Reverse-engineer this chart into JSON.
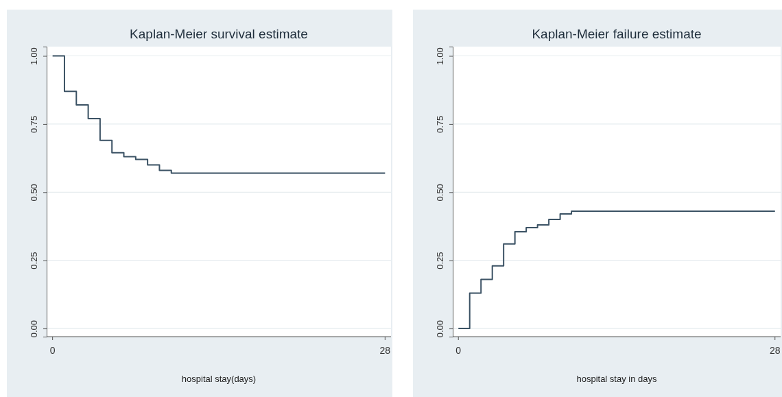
{
  "chart_data": [
    {
      "type": "step",
      "title": "Kaplan-Meier survival estimate",
      "xlabel": "hospital stay(days)",
      "xlim": [
        -0.5,
        28.5
      ],
      "xticks": [
        {
          "value": 0,
          "label": "0"
        },
        28
      ],
      "ylim": [
        -0.03,
        1.034
      ],
      "yticks": [
        {
          "value": 0,
          "label": "0.00"
        },
        {
          "value": 0.25,
          "label": "0.25"
        },
        {
          "value": 0.5,
          "label": "0.50"
        },
        {
          "value": 0.75,
          "label": "0.75"
        },
        {
          "value": 1,
          "label": "1.00"
        }
      ],
      "grid": "y",
      "marker": "none",
      "line_style": "solid",
      "series": [
        {
          "color": "#3b5264",
          "x": [
            0,
            1,
            2,
            3,
            4,
            5,
            6,
            7,
            8,
            9,
            10,
            28
          ],
          "values": [
            1.0,
            0.87,
            0.82,
            0.77,
            0.69,
            0.645,
            0.63,
            0.62,
            0.6,
            0.58,
            0.57,
            0.57
          ]
        }
      ]
    },
    {
      "type": "step",
      "title": "Kaplan-Meier failure estimate",
      "xlabel": "hospital stay in days",
      "xlim": [
        -0.5,
        28.5
      ],
      "xticks": [
        {
          "value": 0,
          "label": "0"
        },
        28
      ],
      "ylim": [
        -0.03,
        1.034
      ],
      "yticks": [
        {
          "value": 0,
          "label": "0.00"
        },
        {
          "value": 0.25,
          "label": "0.25"
        },
        {
          "value": 0.5,
          "label": "0.50"
        },
        {
          "value": 0.75,
          "label": "0.75"
        },
        {
          "value": 1,
          "label": "1.00"
        }
      ],
      "grid": "y",
      "marker": "none",
      "line_style": "solid",
      "series": [
        {
          "color": "#3b5264",
          "x": [
            0,
            1,
            2,
            3,
            4,
            5,
            6,
            7,
            8,
            9,
            10,
            28
          ],
          "values": [
            0.0,
            0.13,
            0.18,
            0.23,
            0.31,
            0.355,
            0.37,
            0.38,
            0.4,
            0.42,
            0.43,
            0.43
          ]
        }
      ]
    }
  ]
}
